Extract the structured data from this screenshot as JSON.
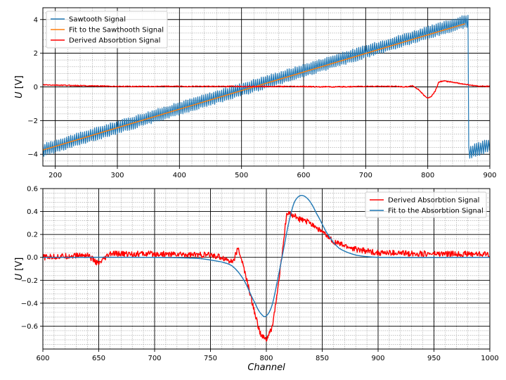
{
  "chart_data": [
    {
      "type": "line",
      "xlabel": "",
      "ylabel": "U [V]",
      "xlim": [
        180,
        900
      ],
      "ylim": [
        -4.7,
        4.7
      ],
      "xticks": [
        200,
        300,
        400,
        500,
        600,
        700,
        800,
        900
      ],
      "yticks": [
        -4,
        -2,
        0,
        2,
        4
      ],
      "grid": {
        "major": true,
        "minor": true
      },
      "legend_position": "upper-left",
      "series": [
        {
          "name": "Sawtooth Signal",
          "color": "#1f77b4",
          "kind": "sawtooth",
          "segments": [
            {
              "x_start": 180,
              "x_end": 866,
              "y_start": -3.75,
              "y_end": 3.95,
              "ripple_amplitude": 0.4
            },
            {
              "x_start": 866,
              "x_end": 900,
              "y_start": -3.9,
              "y_end": -3.45,
              "ripple_amplitude": 0.4
            }
          ]
        },
        {
          "name": "Fit to the Sawthooth Signal",
          "color": "#ff7f0e",
          "kind": "linear",
          "x": [
            180,
            860
          ],
          "y": [
            -3.75,
            3.75
          ]
        },
        {
          "name": "Derived Absorbtion Signal",
          "color": "#ff0000",
          "kind": "absorption",
          "x": [
            180,
            300,
            400,
            500,
            600,
            650,
            700,
            750,
            765,
            775,
            785,
            795,
            800,
            805,
            812,
            818,
            825,
            840,
            860,
            880,
            900
          ],
          "y": [
            0.12,
            0.03,
            0.03,
            0.03,
            0.02,
            0.0,
            0.03,
            0.03,
            0.0,
            0.08,
            -0.15,
            -0.55,
            -0.65,
            -0.6,
            -0.25,
            0.3,
            0.35,
            0.28,
            0.15,
            0.05,
            0.03
          ],
          "noise_amplitude": 0.03
        }
      ]
    },
    {
      "type": "line",
      "xlabel": "Channel",
      "ylabel": "U [V]",
      "xlim": [
        600,
        1000
      ],
      "ylim": [
        -0.8,
        0.6
      ],
      "xticks": [
        600,
        650,
        700,
        750,
        800,
        850,
        900,
        950,
        1000
      ],
      "yticks": [
        -0.6,
        -0.4,
        -0.2,
        0.0,
        0.2,
        0.4,
        0.6
      ],
      "ytick_labels": [
        "−0.6",
        "−0.4",
        "−0.2",
        "0.0",
        "0.2",
        "0.4",
        "0.6"
      ],
      "grid": {
        "major": true,
        "minor": true
      },
      "legend_position": "upper-right",
      "series": [
        {
          "name": "Derived Absorbtion Signal",
          "color": "#ff0000",
          "kind": "absorption",
          "x": [
            600,
            640,
            650,
            660,
            700,
            750,
            760,
            770,
            775,
            780,
            790,
            795,
            800,
            805,
            810,
            815,
            818,
            822,
            830,
            840,
            850,
            860,
            870,
            880,
            900,
            950,
            1000
          ],
          "y": [
            0.0,
            0.02,
            -0.06,
            0.03,
            0.03,
            0.02,
            0.0,
            -0.04,
            0.08,
            -0.1,
            -0.5,
            -0.68,
            -0.72,
            -0.62,
            -0.3,
            0.1,
            0.37,
            0.38,
            0.33,
            0.3,
            0.22,
            0.14,
            0.1,
            0.07,
            0.04,
            0.03,
            0.03
          ],
          "noise_amplitude": 0.025
        },
        {
          "name": "Fit to the Absorbtion Signal",
          "color": "#1f77b4",
          "kind": "dispersion_fit",
          "x": [
            600,
            700,
            740,
            760,
            770,
            780,
            790,
            796,
            800,
            805,
            810,
            815,
            820,
            825,
            831,
            838,
            845,
            855,
            865,
            880,
            900,
            1000
          ],
          "y": [
            0.0,
            0.0,
            -0.01,
            -0.04,
            -0.08,
            -0.2,
            -0.4,
            -0.5,
            -0.51,
            -0.42,
            -0.2,
            0.05,
            0.3,
            0.48,
            0.54,
            0.5,
            0.38,
            0.2,
            0.08,
            0.02,
            0.0,
            0.0
          ]
        }
      ]
    }
  ]
}
